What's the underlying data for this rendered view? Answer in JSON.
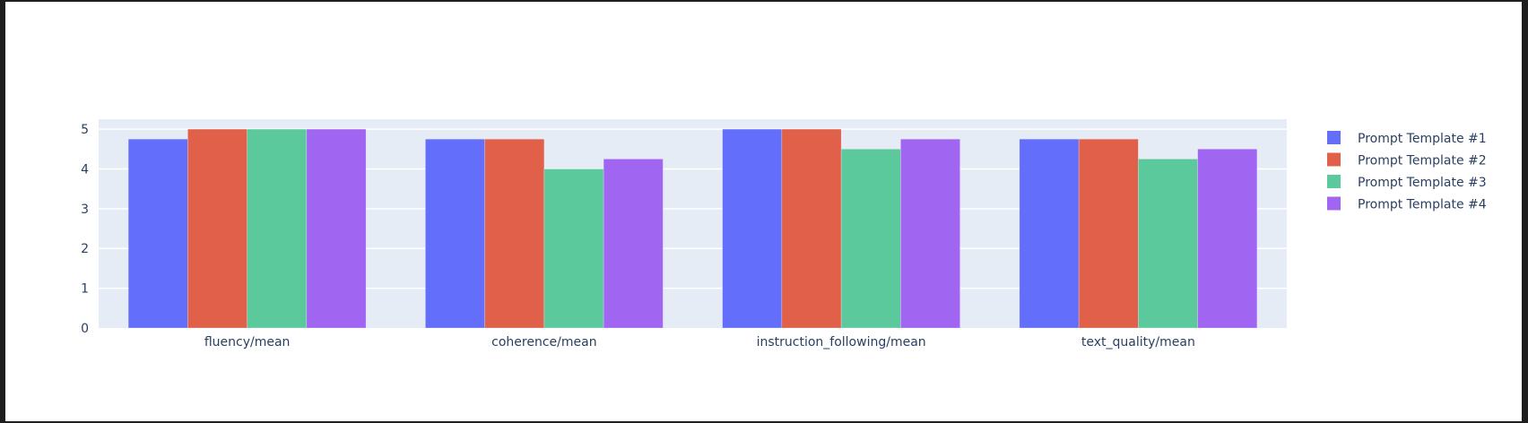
{
  "chart_data": {
    "type": "bar",
    "categories": [
      "fluency/mean",
      "coherence/mean",
      "instruction_following/mean",
      "text_quality/mean"
    ],
    "series": [
      {
        "name": "Prompt Template #1",
        "color": "#636efa",
        "values": [
          4.75,
          4.75,
          5,
          4.75
        ]
      },
      {
        "name": "Prompt Template #2",
        "color": "#ef553b",
        "values": [
          5,
          4.75,
          5,
          4.75
        ]
      },
      {
        "name": "Prompt Template #3",
        "color": "#00cc96",
        "values": [
          5,
          4.0,
          4.5,
          4.25
        ]
      },
      {
        "name": "Prompt Template #4",
        "color": "#ab63fa",
        "values": [
          5,
          4.25,
          4.75,
          4.5
        ]
      }
    ],
    "yticks": [
      "0",
      "1",
      "2",
      "3",
      "4",
      "5"
    ],
    "ylim": [
      0,
      5.25
    ],
    "grid": true,
    "legend": "right",
    "plot_background": "#e5ecf6"
  }
}
